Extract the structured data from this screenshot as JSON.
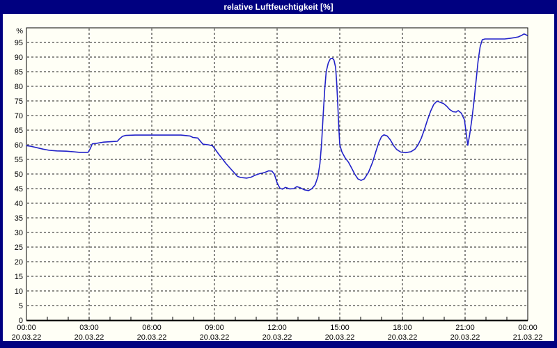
{
  "window": {
    "title": "relative Luftfeuchtigkeit [%]",
    "frame_color": "#000080",
    "title_text_color": "#FFFFFF",
    "background_color": "#FFFFF6"
  },
  "chart_data": {
    "type": "line",
    "title": "relative Luftfeuchtigkeit [%]",
    "series_name": "relative Luftfeuchtigkeit",
    "y_axis_unit": "%",
    "ylim": [
      0,
      100
    ],
    "y_ticks": [
      0,
      5,
      10,
      15,
      20,
      25,
      30,
      35,
      40,
      45,
      50,
      55,
      60,
      65,
      70,
      75,
      80,
      85,
      90,
      95
    ],
    "grid": true,
    "grid_color": "#1c1c1c",
    "axis_color": "#000000",
    "line_color": "#2121c8",
    "x_axis": {
      "hours_span": 24,
      "major_tick_hours": 3,
      "minor_tick_hours": 1,
      "labels": [
        {
          "time": "00:00",
          "date": "20.03.22"
        },
        {
          "time": "03:00",
          "date": "20.03.22"
        },
        {
          "time": "06:00",
          "date": "20.03.22"
        },
        {
          "time": "09:00",
          "date": "20.03.22"
        },
        {
          "time": "12:00",
          "date": "20.03.22"
        },
        {
          "time": "15:00",
          "date": "20.03.22"
        },
        {
          "time": "18:00",
          "date": "20.03.22"
        },
        {
          "time": "21:00",
          "date": "20.03.22"
        },
        {
          "time": "00:00",
          "date": "21.03.22"
        }
      ]
    },
    "series": [
      {
        "name": "relative Luftfeuchtigkeit [%]",
        "points": [
          [
            0.0,
            59.7
          ],
          [
            0.2,
            59.5
          ],
          [
            0.5,
            59.0
          ],
          [
            0.8,
            58.5
          ],
          [
            1.1,
            58.1
          ],
          [
            1.45,
            57.9
          ],
          [
            1.9,
            57.8
          ],
          [
            2.25,
            57.6
          ],
          [
            2.55,
            57.4
          ],
          [
            2.95,
            57.4
          ],
          [
            3.05,
            58.6
          ],
          [
            3.15,
            60.3
          ],
          [
            3.35,
            60.5
          ],
          [
            3.7,
            60.9
          ],
          [
            4.1,
            61.1
          ],
          [
            4.35,
            61.2
          ],
          [
            4.45,
            62.0
          ],
          [
            4.6,
            62.9
          ],
          [
            4.75,
            63.2
          ],
          [
            5.2,
            63.3
          ],
          [
            6.3,
            63.3
          ],
          [
            7.4,
            63.3
          ],
          [
            7.83,
            63.0
          ],
          [
            7.97,
            62.5
          ],
          [
            8.2,
            62.3
          ],
          [
            8.33,
            61.2
          ],
          [
            8.45,
            60.2
          ],
          [
            8.7,
            60.0
          ],
          [
            8.9,
            59.7
          ],
          [
            9.0,
            58.8
          ],
          [
            9.2,
            56.8
          ],
          [
            9.4,
            55.0
          ],
          [
            9.55,
            53.6
          ],
          [
            9.75,
            52.0
          ],
          [
            9.95,
            50.4
          ],
          [
            10.1,
            49.2
          ],
          [
            10.25,
            48.8
          ],
          [
            10.55,
            48.6
          ],
          [
            10.75,
            48.9
          ],
          [
            10.95,
            49.6
          ],
          [
            11.15,
            50.1
          ],
          [
            11.4,
            50.5
          ],
          [
            11.6,
            51.1
          ],
          [
            11.75,
            51.0
          ],
          [
            11.87,
            49.9
          ],
          [
            12.0,
            47.0
          ],
          [
            12.13,
            45.2
          ],
          [
            12.25,
            44.8
          ],
          [
            12.4,
            45.4
          ],
          [
            12.6,
            44.9
          ],
          [
            12.8,
            45.0
          ],
          [
            12.95,
            45.7
          ],
          [
            13.1,
            45.3
          ],
          [
            13.3,
            44.6
          ],
          [
            13.5,
            44.3
          ],
          [
            13.67,
            45.0
          ],
          [
            13.82,
            46.3
          ],
          [
            13.95,
            49.0
          ],
          [
            14.05,
            53.5
          ],
          [
            14.13,
            60.5
          ],
          [
            14.2,
            69.5
          ],
          [
            14.28,
            79.0
          ],
          [
            14.35,
            85.0
          ],
          [
            14.45,
            88.0
          ],
          [
            14.55,
            89.4
          ],
          [
            14.65,
            89.6
          ],
          [
            14.72,
            89.0
          ],
          [
            14.8,
            86.5
          ],
          [
            14.85,
            81.5
          ],
          [
            14.9,
            74.5
          ],
          [
            14.95,
            66.5
          ],
          [
            15.0,
            60.0
          ],
          [
            15.1,
            57.6
          ],
          [
            15.25,
            55.6
          ],
          [
            15.42,
            54.0
          ],
          [
            15.57,
            52.0
          ],
          [
            15.72,
            49.9
          ],
          [
            15.87,
            48.3
          ],
          [
            16.02,
            47.8
          ],
          [
            16.17,
            48.3
          ],
          [
            16.37,
            50.5
          ],
          [
            16.57,
            54.0
          ],
          [
            16.72,
            57.5
          ],
          [
            16.87,
            60.8
          ],
          [
            17.0,
            62.8
          ],
          [
            17.12,
            63.4
          ],
          [
            17.27,
            63.0
          ],
          [
            17.42,
            61.7
          ],
          [
            17.57,
            59.8
          ],
          [
            17.72,
            58.4
          ],
          [
            17.92,
            57.5
          ],
          [
            18.15,
            57.3
          ],
          [
            18.4,
            57.6
          ],
          [
            18.6,
            58.5
          ],
          [
            18.75,
            60.0
          ],
          [
            18.9,
            62.2
          ],
          [
            19.05,
            65.2
          ],
          [
            19.2,
            68.5
          ],
          [
            19.35,
            71.5
          ],
          [
            19.5,
            73.8
          ],
          [
            19.65,
            74.9
          ],
          [
            19.82,
            74.5
          ],
          [
            19.97,
            74.1
          ],
          [
            20.12,
            73.2
          ],
          [
            20.27,
            72.0
          ],
          [
            20.42,
            71.3
          ],
          [
            20.57,
            71.2
          ],
          [
            20.67,
            71.7
          ],
          [
            20.82,
            70.8
          ],
          [
            20.97,
            68.5
          ],
          [
            21.05,
            64.0
          ],
          [
            21.13,
            59.8
          ],
          [
            21.22,
            63.5
          ],
          [
            21.32,
            68.5
          ],
          [
            21.42,
            74.5
          ],
          [
            21.52,
            81.5
          ],
          [
            21.62,
            88.5
          ],
          [
            21.72,
            93.5
          ],
          [
            21.82,
            95.9
          ],
          [
            21.95,
            96.2
          ],
          [
            22.4,
            96.2
          ],
          [
            22.9,
            96.2
          ],
          [
            23.15,
            96.4
          ],
          [
            23.4,
            96.7
          ],
          [
            23.55,
            96.9
          ],
          [
            23.7,
            97.4
          ],
          [
            23.82,
            97.9
          ],
          [
            23.9,
            97.7
          ],
          [
            23.97,
            97.4
          ]
        ]
      }
    ]
  }
}
